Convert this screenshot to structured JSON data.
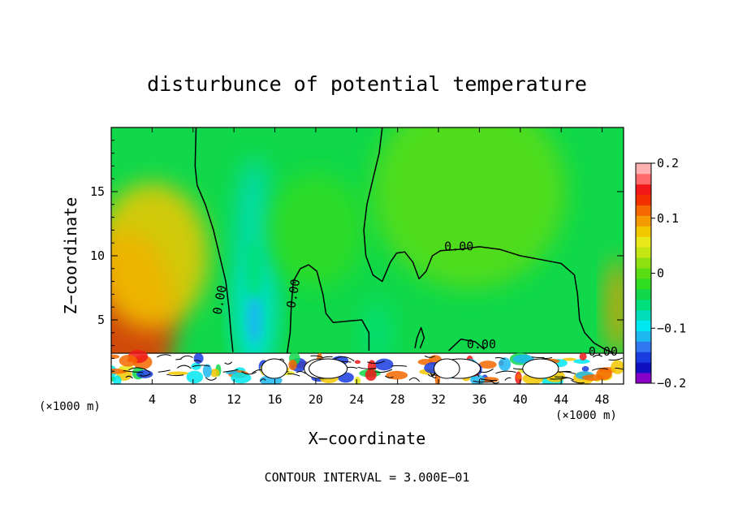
{
  "chart_data": {
    "type": "heatmap",
    "title": "disturbunce of potential temperature",
    "xlabel": "X−coordinate",
    "ylabel": "Z−coordinate",
    "x_unit_label": "(×1000 m)",
    "x_unit_label_right": "(×1000 m)",
    "footer": "CONTOUR INTERVAL = 3.000E−01",
    "xlim": [
      0,
      50.1
    ],
    "ylim": [
      0,
      20
    ],
    "x_ticks": [
      {
        "value": 4,
        "label": "4"
      },
      {
        "value": 8,
        "label": "8"
      },
      {
        "value": 12,
        "label": "12"
      },
      {
        "value": 16,
        "label": "16"
      },
      {
        "value": 20,
        "label": "20"
      },
      {
        "value": 24,
        "label": "24"
      },
      {
        "value": 28,
        "label": "28"
      },
      {
        "value": 32,
        "label": "32"
      },
      {
        "value": 36,
        "label": "36"
      },
      {
        "value": 40,
        "label": "40"
      },
      {
        "value": 44,
        "label": "44"
      },
      {
        "value": 48,
        "label": "48"
      }
    ],
    "y_ticks": [
      {
        "value": 5,
        "label": "5"
      },
      {
        "value": 10,
        "label": "10"
      },
      {
        "value": 15,
        "label": "15"
      }
    ],
    "colorbar": {
      "min": -0.2,
      "max": 0.2,
      "ticks": [
        {
          "value": 0.2,
          "label": "0.2"
        },
        {
          "value": 0.1,
          "label": "0.1"
        },
        {
          "value": 0,
          "label": "0"
        },
        {
          "value": -0.1,
          "label": "−0.1"
        },
        {
          "value": -0.2,
          "label": "−0.2"
        }
      ],
      "colors": [
        "#8800c8",
        "#1010c0",
        "#1a3cde",
        "#2f78ee",
        "#1cb8f2",
        "#00e8f0",
        "#00ddb8",
        "#00e07a",
        "#10d84a",
        "#30dc20",
        "#5add14",
        "#8fe010",
        "#c4e614",
        "#e8e81a",
        "#f2c800",
        "#f59a00",
        "#f56800",
        "#f23000",
        "#f01818",
        "#ff6a6a",
        "#ffb0b0"
      ]
    },
    "contour_labels": [
      {
        "text": "0.00",
        "x": 11.0,
        "z": 6.5
      },
      {
        "text": "0.00",
        "x": 18.2,
        "z": 7.0
      },
      {
        "text": "0.00",
        "x": 34.0,
        "z": 10.4
      },
      {
        "text": "0.00",
        "x": 36.2,
        "z": 2.8
      },
      {
        "text": "0.00",
        "x": 48.1,
        "z": 2.2
      }
    ],
    "contour_lines": [
      [
        [
          8.3,
          20
        ],
        [
          8.2,
          17
        ],
        [
          8.4,
          15.5
        ],
        [
          9.2,
          14
        ],
        [
          10.0,
          12
        ],
        [
          10.6,
          10
        ],
        [
          11.2,
          8
        ],
        [
          11.5,
          6
        ],
        [
          11.7,
          4
        ],
        [
          11.9,
          2.5
        ]
      ],
      [
        [
          26.5,
          20
        ],
        [
          26.2,
          18
        ],
        [
          25.6,
          16
        ],
        [
          25.0,
          14
        ],
        [
          24.7,
          12
        ],
        [
          24.9,
          10
        ],
        [
          25.6,
          8.5
        ],
        [
          26.5,
          8
        ],
        [
          27.3,
          9.5
        ],
        [
          27.9,
          10.2
        ],
        [
          28.7,
          10.3
        ],
        [
          29.5,
          9.5
        ],
        [
          30.1,
          8.2
        ],
        [
          30.8,
          8.8
        ],
        [
          31.4,
          10
        ],
        [
          32.2,
          10.4
        ],
        [
          34.0,
          10.5
        ],
        [
          36,
          10.7
        ],
        [
          38,
          10.5
        ],
        [
          40,
          10.0
        ],
        [
          42,
          9.7
        ],
        [
          44,
          9.4
        ],
        [
          45.3,
          8.5
        ],
        [
          45.6,
          7
        ],
        [
          45.8,
          5
        ],
        [
          46.3,
          4
        ],
        [
          47.2,
          3.2
        ],
        [
          48.3,
          2.7
        ],
        [
          49.2,
          2.4
        ],
        [
          50.1,
          2.3
        ]
      ],
      [
        [
          17.2,
          2.4
        ],
        [
          17.5,
          4
        ],
        [
          17.6,
          6
        ],
        [
          17.8,
          8
        ],
        [
          18.5,
          9
        ],
        [
          19.3,
          9.3
        ],
        [
          20.1,
          8.8
        ],
        [
          20.7,
          7
        ],
        [
          21.0,
          5.5
        ],
        [
          21.7,
          4.8
        ],
        [
          23,
          4.9
        ],
        [
          24.5,
          5
        ],
        [
          25.2,
          4
        ],
        [
          25.2,
          2.6
        ]
      ],
      [
        [
          29.7,
          2.8
        ],
        [
          29.9,
          3.6
        ],
        [
          30.3,
          4.4
        ],
        [
          30.6,
          3.6
        ],
        [
          30.2,
          2.8
        ]
      ],
      [
        [
          33.0,
          2.6
        ],
        [
          34.2,
          3.5
        ],
        [
          35.6,
          3.3
        ],
        [
          36.5,
          2.7
        ]
      ]
    ],
    "sample_values": [
      {
        "x": 1.5,
        "z": 5,
        "v": 0.13
      },
      {
        "x": 4,
        "z": 10,
        "v": 0.08
      },
      {
        "x": 14,
        "z": 5,
        "v": -0.1
      },
      {
        "x": 14,
        "z": 10,
        "v": -0.07
      },
      {
        "x": 20,
        "z": 12,
        "v": -0.02
      },
      {
        "x": 26,
        "z": 4,
        "v": -0.05
      },
      {
        "x": 35,
        "z": 15,
        "v": 0.0
      },
      {
        "x": 49.5,
        "z": 6,
        "v": 0.1
      }
    ]
  }
}
